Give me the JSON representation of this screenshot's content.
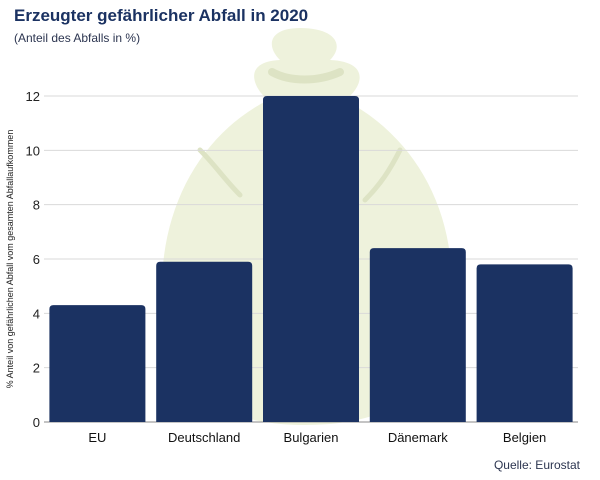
{
  "title": "Erzeugter gefährlicher Abfall in 2020",
  "subtitle": "(Anteil des Abfalls in %)",
  "source": "Quelle: Eurostat",
  "colors": {
    "bar": "#1b3262",
    "grid": "#d9d9d9",
    "background_illustration": "#eef2dc"
  },
  "chart_data": {
    "type": "bar",
    "categories": [
      "EU",
      "Deutschland",
      "Bulgarien",
      "Dänemark",
      "Belgien"
    ],
    "values": [
      4.3,
      5.9,
      12.0,
      6.4,
      5.8
    ],
    "ylabel": "% Anteil von gefährlichen Abfall vom gesamten Abfallaufkommen",
    "xlabel": "",
    "ylim": [
      0,
      12
    ],
    "yticks": [
      0,
      2,
      4,
      6,
      8,
      10,
      12
    ],
    "grid": true,
    "legend": "none"
  }
}
